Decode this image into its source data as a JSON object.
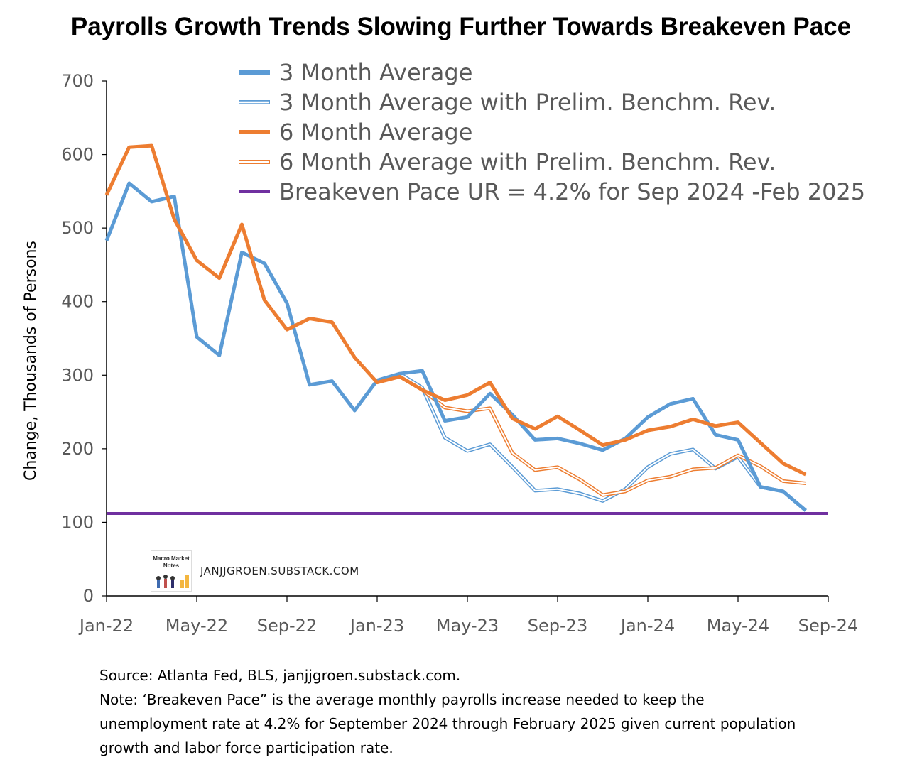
{
  "chart_data": {
    "type": "line",
    "title": "Payrolls Growth Trends Slowing Further Towards Breakeven Pace",
    "ylabel": "Change, Thousands of Persons",
    "xlabel": "",
    "ylim": [
      0,
      700
    ],
    "yticks": [
      0,
      100,
      200,
      300,
      400,
      500,
      600,
      700
    ],
    "xlim": [
      "Jan-22",
      "Sep-24"
    ],
    "xticks": [
      "Jan-22",
      "May-22",
      "Sep-22",
      "Jan-23",
      "May-23",
      "Sep-23",
      "Jan-24",
      "May-24",
      "Sep-24"
    ],
    "legend_position": "top",
    "grid": false,
    "series": [
      {
        "name": "3 Month Average",
        "color": "#5B9BD5",
        "style": "solid",
        "x": [
          "Jan-22",
          "Feb-22",
          "Mar-22",
          "Apr-22",
          "May-22",
          "Jun-22",
          "Jul-22",
          "Aug-22",
          "Sep-22",
          "Oct-22",
          "Nov-22",
          "Dec-22",
          "Jan-23",
          "Feb-23",
          "Mar-23",
          "Apr-23",
          "May-23",
          "Jun-23",
          "Jul-23",
          "Aug-23",
          "Sep-23",
          "Oct-23",
          "Nov-23",
          "Dec-23",
          "Jan-24",
          "Feb-24",
          "Mar-24",
          "Apr-24",
          "May-24",
          "Jun-24",
          "Jul-24",
          "Aug-24"
        ],
        "values": [
          483,
          561,
          536,
          543,
          352,
          327,
          467,
          452,
          398,
          287,
          292,
          252,
          293,
          302,
          306,
          238,
          243,
          275,
          246,
          212,
          214,
          207,
          198,
          214,
          243,
          261,
          268,
          219,
          212,
          148,
          142,
          116
        ]
      },
      {
        "name": "3 Month Average with Prelim. Benchm. Rev.",
        "color": "#5B9BD5",
        "style": "double",
        "x": [
          "Feb-23",
          "Mar-23",
          "Apr-23",
          "May-23",
          "Jun-23",
          "Jul-23",
          "Aug-23",
          "Sep-23",
          "Oct-23",
          "Nov-23",
          "Dec-23",
          "Jan-24",
          "Feb-24",
          "Mar-24",
          "Apr-24",
          "May-24",
          "Jun-24",
          "Jul-24",
          "Aug-24"
        ],
        "values": [
          302,
          283,
          215,
          197,
          206,
          175,
          143,
          145,
          139,
          129,
          145,
          175,
          193,
          199,
          173,
          189,
          148,
          142,
          116
        ]
      },
      {
        "name": "6 Month Average",
        "color": "#ED7D31",
        "style": "solid",
        "x": [
          "Jan-22",
          "Feb-22",
          "Mar-22",
          "Apr-22",
          "May-22",
          "Jun-22",
          "Jul-22",
          "Aug-22",
          "Sep-22",
          "Oct-22",
          "Nov-22",
          "Dec-22",
          "Jan-23",
          "Feb-23",
          "Mar-23",
          "Apr-23",
          "May-23",
          "Jun-23",
          "Jul-23",
          "Aug-23",
          "Sep-23",
          "Oct-23",
          "Nov-23",
          "Dec-23",
          "Jan-24",
          "Feb-24",
          "Mar-24",
          "Apr-24",
          "May-24",
          "Jun-24",
          "Jul-24",
          "Aug-24"
        ],
        "values": [
          545,
          610,
          612,
          512,
          456,
          432,
          505,
          402,
          362,
          377,
          372,
          324,
          290,
          298,
          280,
          266,
          273,
          290,
          241,
          227,
          244,
          225,
          205,
          212,
          225,
          230,
          240,
          231,
          236,
          208,
          180,
          165
        ]
      },
      {
        "name": "6 Month Average with Prelim. Benchm. Rev.",
        "color": "#ED7D31",
        "style": "double",
        "x": [
          "Feb-23",
          "Mar-23",
          "Apr-23",
          "May-23",
          "Jun-23",
          "Jul-23",
          "Aug-23",
          "Sep-23",
          "Oct-23",
          "Nov-23",
          "Dec-23",
          "Jan-24",
          "Feb-24",
          "Mar-24",
          "Apr-24",
          "May-24",
          "Jun-24",
          "Jul-24",
          "Aug-24"
        ],
        "values": [
          298,
          280,
          256,
          251,
          255,
          194,
          171,
          175,
          158,
          137,
          142,
          157,
          162,
          172,
          174,
          191,
          176,
          156,
          153
        ]
      },
      {
        "name": "Breakeven Pace UR = 4.2% for Sep 2024 -Feb 2025",
        "color": "#7030A0",
        "style": "solid",
        "x": [
          "Jan-22",
          "Sep-24"
        ],
        "values": [
          112,
          112
        ]
      }
    ]
  },
  "notes": {
    "source": "Source: Atlanta Fed, BLS, janjjgroen.substack.com.",
    "line1": "Note: ‘Breakeven Pace” is the average monthly payrolls increase needed to keep the",
    "line2": "unemployment rate at 4.2% for September 2024  through February 2025 given current population",
    "line3": "growth and labor force participation rate."
  },
  "watermark": {
    "text": "JANJJGROEN.SUBSTACK.COM",
    "logo_text": "Macro Market Notes"
  }
}
